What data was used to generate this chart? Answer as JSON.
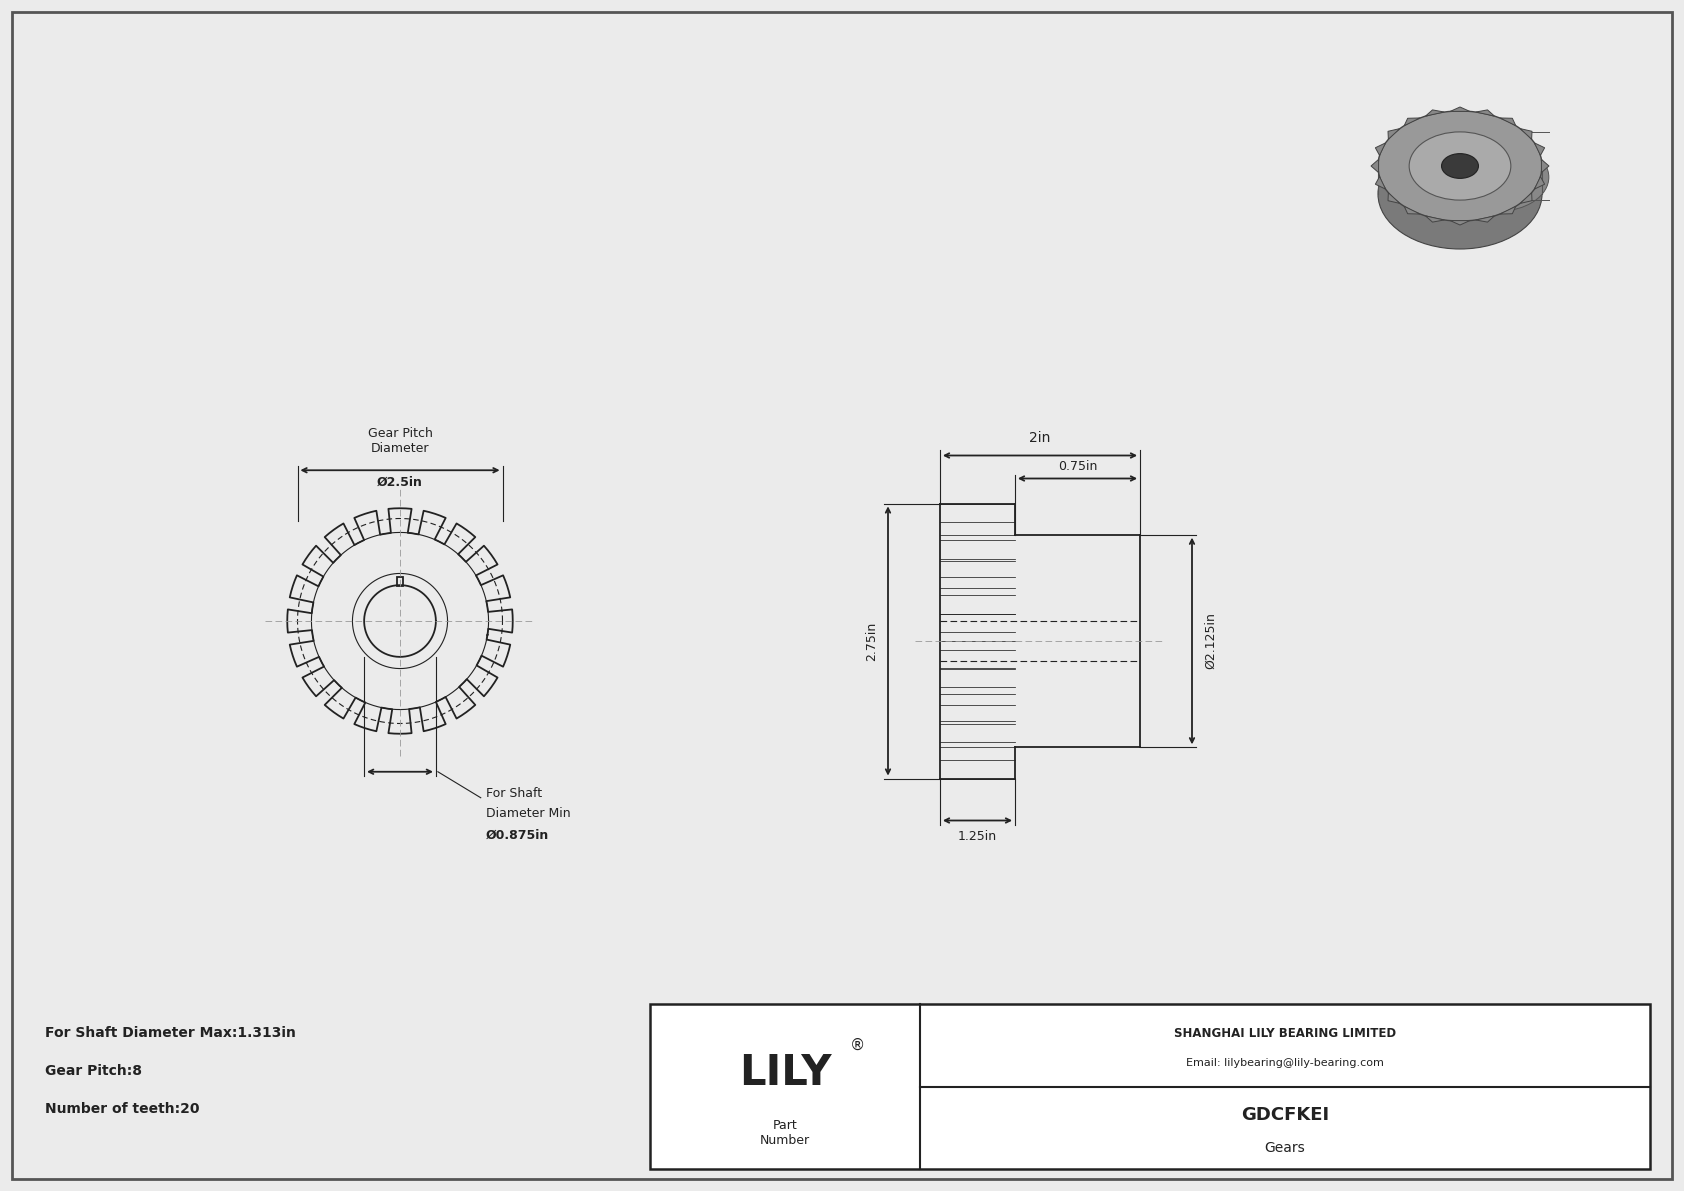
{
  "bg_color": "#ebebeb",
  "line_color": "#222222",
  "gear_teeth": 20,
  "gear_pitch": 8,
  "shaft_dia_max": 1.313,
  "shaft_dia_min": 0.875,
  "info_text_lines": [
    "For Shaft Diameter Max:1.313in",
    "Gear Pitch:8",
    "Number of teeth:20"
  ],
  "company": "LILY",
  "company_reg": "®",
  "company_full": "SHANGHAI LILY BEARING LIMITED",
  "company_email": "Email: lilybearing@lily-bearing.com",
  "part_number": "GDCFKEI",
  "part_type": "Gears",
  "dim_pitch_dia": "Ø2.5in",
  "dim_bore_dia": "Ø0.875in",
  "dim_hub_dia": "Ø2.125in",
  "dim_total_w": "2in",
  "dim_hub_w": "0.75in",
  "dim_gear_h": "2.75in",
  "dim_gear_part_w": "1.25in",
  "label_gear_pitch": "Gear Pitch",
  "label_diameter": "Diameter",
  "label_for_shaft": "For Shaft",
  "label_dia_min": "Diameter Min"
}
